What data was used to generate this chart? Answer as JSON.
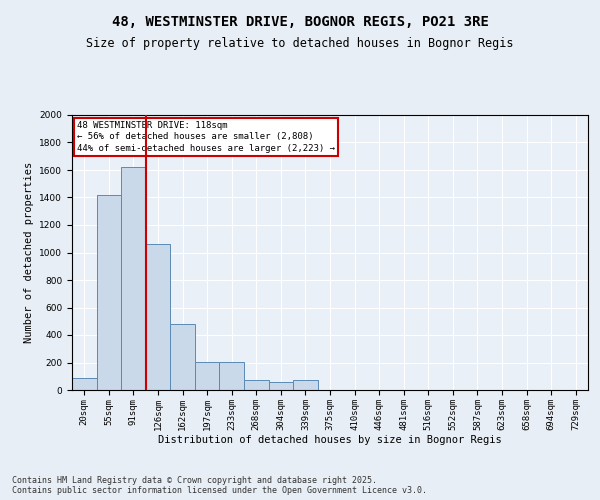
{
  "title1": "48, WESTMINSTER DRIVE, BOGNOR REGIS, PO21 3RE",
  "title2": "Size of property relative to detached houses in Bognor Regis",
  "xlabel": "Distribution of detached houses by size in Bognor Regis",
  "ylabel": "Number of detached properties",
  "categories": [
    "20sqm",
    "55sqm",
    "91sqm",
    "126sqm",
    "162sqm",
    "197sqm",
    "233sqm",
    "268sqm",
    "304sqm",
    "339sqm",
    "375sqm",
    "410sqm",
    "446sqm",
    "481sqm",
    "516sqm",
    "552sqm",
    "587sqm",
    "623sqm",
    "658sqm",
    "694sqm",
    "729sqm"
  ],
  "values": [
    90,
    1420,
    1620,
    1060,
    480,
    205,
    205,
    75,
    55,
    70,
    0,
    0,
    0,
    0,
    0,
    0,
    0,
    0,
    0,
    0,
    0
  ],
  "bar_color": "#c9d9ea",
  "bar_edge_color": "#5a8ab5",
  "vline_color": "#cc0000",
  "annotation_text": "48 WESTMINSTER DRIVE: 118sqm\n← 56% of detached houses are smaller (2,808)\n44% of semi-detached houses are larger (2,223) →",
  "annotation_box_color": "#ffffff",
  "annotation_box_edge": "#cc0000",
  "footer1": "Contains HM Land Registry data © Crown copyright and database right 2025.",
  "footer2": "Contains public sector information licensed under the Open Government Licence v3.0.",
  "ylim": [
    0,
    2000
  ],
  "yticks": [
    0,
    200,
    400,
    600,
    800,
    1000,
    1200,
    1400,
    1600,
    1800,
    2000
  ],
  "bg_color": "#e8eef5",
  "plot_bg_color": "#eaf0f7",
  "title_fontsize": 10,
  "subtitle_fontsize": 8.5,
  "label_fontsize": 7.5,
  "tick_fontsize": 6.5,
  "annot_fontsize": 6.5,
  "footer_fontsize": 6
}
